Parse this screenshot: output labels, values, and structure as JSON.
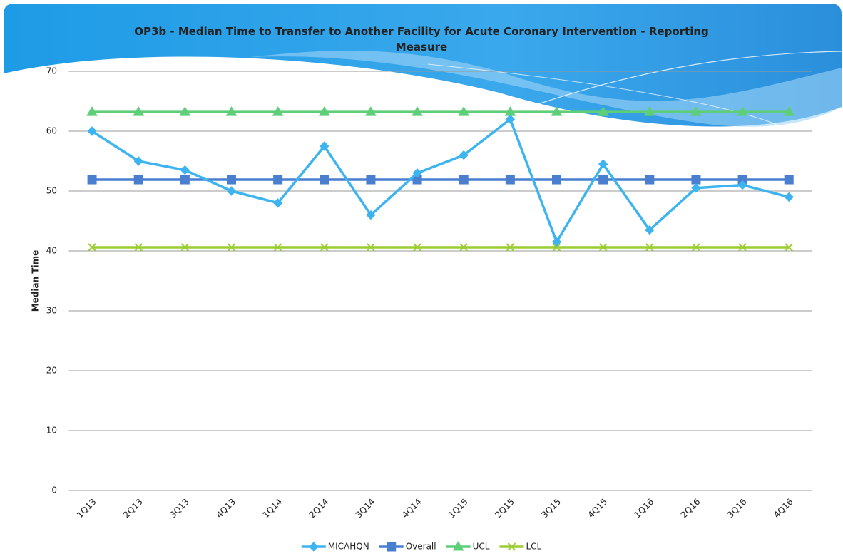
{
  "chart_data": {
    "type": "line",
    "title": "OP3b - Median Time to Transfer to Another Facility for Acute Coronary Intervention - Reporting Measure",
    "y_label": "Median Time",
    "categories": [
      "1Q13",
      "2Q13",
      "3Q13",
      "4Q13",
      "1Q14",
      "2Q14",
      "3Q14",
      "4Q14",
      "1Q15",
      "2Q15",
      "3Q15",
      "4Q15",
      "1Q16",
      "2Q16",
      "3Q16",
      "4Q16"
    ],
    "series": [
      {
        "name": "MICAHQN",
        "color": "#3db4f0",
        "marker": "diamond",
        "values": [
          60,
          55,
          53.5,
          50,
          48,
          57.5,
          46,
          53,
          56,
          62,
          41.5,
          54.5,
          43.5,
          50.5,
          51,
          49
        ]
      },
      {
        "name": "Overall",
        "color": "#4a7fd0",
        "marker": "square",
        "values": [
          51.9,
          51.9,
          51.9,
          51.9,
          51.9,
          51.9,
          51.9,
          51.9,
          51.9,
          51.9,
          51.9,
          51.9,
          51.9,
          51.9,
          51.9,
          51.9
        ]
      },
      {
        "name": "UCL",
        "color": "#5ecf78",
        "marker": "triangle",
        "values": [
          63.2,
          63.2,
          63.2,
          63.2,
          63.2,
          63.2,
          63.2,
          63.2,
          63.2,
          63.2,
          63.2,
          63.2,
          63.2,
          63.2,
          63.2,
          63.2
        ]
      },
      {
        "name": "LCL",
        "color": "#9acd32",
        "marker": "x",
        "values": [
          40.6,
          40.6,
          40.6,
          40.6,
          40.6,
          40.6,
          40.6,
          40.6,
          40.6,
          40.6,
          40.6,
          40.6,
          40.6,
          40.6,
          40.6,
          40.6
        ]
      }
    ],
    "ylim": [
      0,
      70
    ],
    "yticks": [
      0,
      10,
      20,
      30,
      40,
      50,
      60,
      70
    ],
    "grid": true,
    "legend": "bottom"
  }
}
